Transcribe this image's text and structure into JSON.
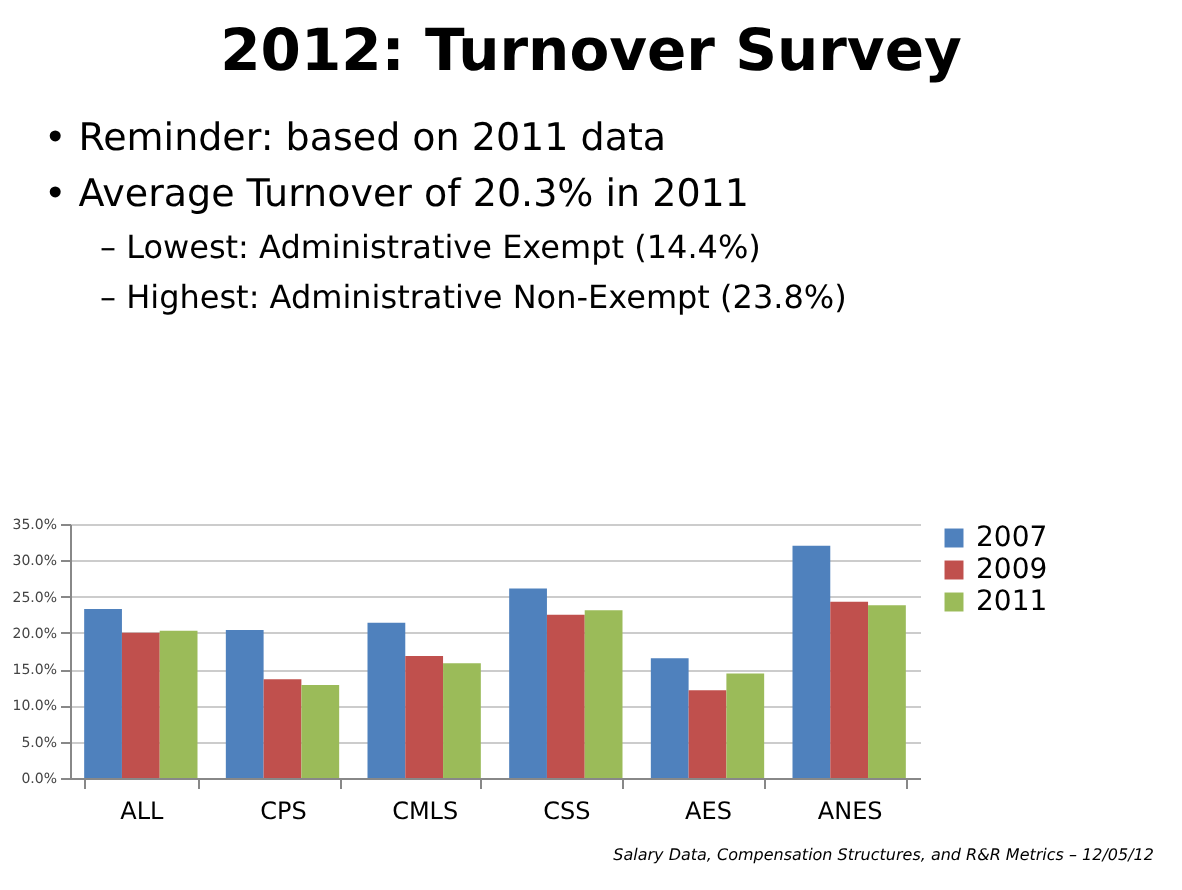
{
  "chart_data": {
    "type": "bar",
    "title": "2012: Turnover Survey",
    "annotations": [
      "• Reminder: based on 2011 data",
      "• Average Turnover of 20.3% in 2011",
      "– Lowest:  Administrative Exempt (14.4%)",
      "– Highest:  Administrative Non-Exempt (23.8%)",
      "Salary Data, Compensation Structures, and R&R Metrics – 12/05/12"
    ],
    "categories": [
      "ALL",
      "CPS",
      "CMLS",
      "CSS",
      "AES",
      "ANES"
    ],
    "series": [
      {
        "name": "2007",
        "color": "#4f81bd",
        "values": [
          23.3,
          20.4,
          21.4,
          26.1,
          16.5,
          32.0
        ]
      },
      {
        "name": "2009",
        "color": "#c0504d",
        "values": [
          20.0,
          13.6,
          16.8,
          22.5,
          12.1,
          24.3
        ]
      },
      {
        "name": "2011",
        "color": "#9bbb59",
        "values": [
          20.3,
          12.8,
          15.8,
          23.1,
          14.4,
          23.8
        ]
      }
    ],
    "ylim": [
      0,
      35
    ],
    "yticks": [
      {
        "value": 0,
        "label": "0.0%"
      },
      {
        "value": 5,
        "label": "5.0%"
      },
      {
        "value": 10,
        "label": "10.0%"
      },
      {
        "value": 15,
        "label": "15.0%"
      },
      {
        "value": 20,
        "label": "20.0%"
      },
      {
        "value": 25,
        "label": "25.0%"
      },
      {
        "value": 30,
        "label": "30.0%"
      },
      {
        "value": 35,
        "label": "35.0%"
      }
    ],
    "grid": "y",
    "legend": "right"
  }
}
